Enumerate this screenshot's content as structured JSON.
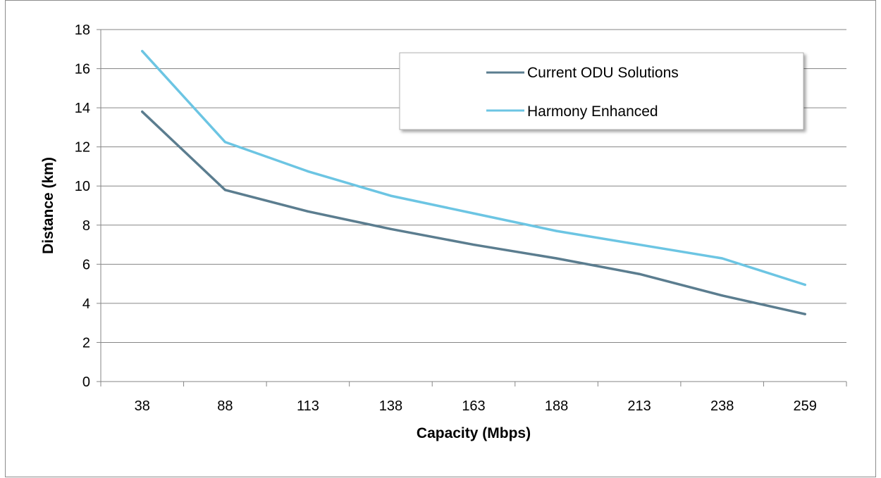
{
  "chart_data": {
    "type": "line",
    "categories": [
      "38",
      "88",
      "113",
      "138",
      "163",
      "188",
      "213",
      "238",
      "259"
    ],
    "series": [
      {
        "name": "Current ODU Solutions",
        "color": "#5b7d8f",
        "values": [
          13.8,
          9.8,
          8.7,
          7.8,
          7.0,
          6.3,
          5.5,
          4.4,
          3.45
        ]
      },
      {
        "name": "Harmony Enhanced",
        "color": "#6cc5e3",
        "values": [
          16.9,
          12.25,
          10.75,
          9.5,
          8.6,
          7.7,
          7.0,
          6.3,
          4.95
        ]
      }
    ],
    "xlabel": "Capacity (Mbps)",
    "ylabel": "Distance (km)",
    "ylim": [
      0,
      18
    ],
    "yticks": [
      "0",
      "2",
      "4",
      "6",
      "8",
      "10",
      "12",
      "14",
      "16",
      "18"
    ],
    "grid": "horizontal",
    "legend_position": "top-right"
  }
}
